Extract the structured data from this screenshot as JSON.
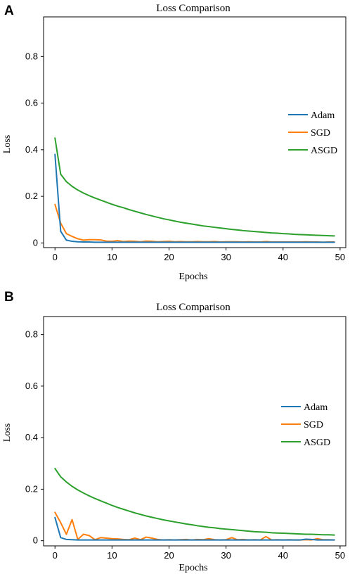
{
  "chart_data": [
    {
      "panel_label": "A",
      "type": "line",
      "title": "Loss Comparison",
      "xlabel": "Epochs",
      "ylabel": "Loss",
      "xlim": [
        -2,
        51
      ],
      "ylim": [
        -0.02,
        0.97
      ],
      "xticks": [
        0,
        10,
        20,
        30,
        40,
        50
      ],
      "yticks": [
        0,
        0.2,
        0.4,
        0.6,
        0.8
      ],
      "legend_position": "right",
      "x": [
        0,
        1,
        2,
        3,
        4,
        5,
        6,
        7,
        8,
        9,
        10,
        11,
        12,
        13,
        14,
        15,
        16,
        17,
        18,
        19,
        20,
        21,
        22,
        23,
        24,
        25,
        26,
        27,
        28,
        29,
        30,
        31,
        32,
        33,
        34,
        35,
        36,
        37,
        38,
        39,
        40,
        41,
        42,
        43,
        44,
        45,
        46,
        47,
        48,
        49
      ],
      "series": [
        {
          "name": "Adam",
          "color": "#1f77b4",
          "values": [
            0.38,
            0.05,
            0.012,
            0.007,
            0.005,
            0.004,
            0.004,
            0.003,
            0.003,
            0.003,
            0.003,
            0.003,
            0.003,
            0.003,
            0.003,
            0.003,
            0.003,
            0.003,
            0.003,
            0.003,
            0.003,
            0.003,
            0.003,
            0.003,
            0.003,
            0.003,
            0.003,
            0.003,
            0.003,
            0.003,
            0.003,
            0.003,
            0.003,
            0.003,
            0.003,
            0.003,
            0.003,
            0.003,
            0.003,
            0.003,
            0.003,
            0.003,
            0.003,
            0.003,
            0.003,
            0.003,
            0.003,
            0.003,
            0.003,
            0.003
          ]
        },
        {
          "name": "SGD",
          "color": "#ff7f0e",
          "values": [
            0.165,
            0.085,
            0.04,
            0.028,
            0.018,
            0.012,
            0.014,
            0.014,
            0.013,
            0.008,
            0.007,
            0.01,
            0.006,
            0.008,
            0.007,
            0.005,
            0.008,
            0.007,
            0.005,
            0.006,
            0.007,
            0.005,
            0.006,
            0.005,
            0.005,
            0.006,
            0.005,
            0.005,
            0.006,
            0.004,
            0.005,
            0.005,
            0.005,
            0.004,
            0.005,
            0.004,
            0.004,
            0.006,
            0.004,
            0.004,
            0.004,
            0.004,
            0.004,
            0.004,
            0.005,
            0.004,
            0.004,
            0.003,
            0.004,
            0.004
          ]
        },
        {
          "name": "ASGD",
          "color": "#2ca02c",
          "values": [
            0.45,
            0.295,
            0.263,
            0.243,
            0.227,
            0.214,
            0.203,
            0.193,
            0.184,
            0.175,
            0.166,
            0.158,
            0.151,
            0.143,
            0.136,
            0.129,
            0.122,
            0.116,
            0.11,
            0.104,
            0.099,
            0.094,
            0.089,
            0.085,
            0.081,
            0.077,
            0.073,
            0.07,
            0.067,
            0.064,
            0.061,
            0.058,
            0.056,
            0.053,
            0.051,
            0.049,
            0.047,
            0.045,
            0.043,
            0.042,
            0.04,
            0.039,
            0.037,
            0.036,
            0.035,
            0.034,
            0.033,
            0.032,
            0.031,
            0.03
          ]
        }
      ]
    },
    {
      "panel_label": "B",
      "type": "line",
      "title": "Loss Comparison",
      "xlabel": "Epochs",
      "ylabel": "Loss",
      "xlim": [
        -2,
        51
      ],
      "ylim": [
        -0.02,
        0.87
      ],
      "xticks": [
        0,
        10,
        20,
        30,
        40,
        50
      ],
      "yticks": [
        0,
        0.2,
        0.4,
        0.6,
        0.8
      ],
      "legend_position": "right",
      "x": [
        0,
        1,
        2,
        3,
        4,
        5,
        6,
        7,
        8,
        9,
        10,
        11,
        12,
        13,
        14,
        15,
        16,
        17,
        18,
        19,
        20,
        21,
        22,
        23,
        24,
        25,
        26,
        27,
        28,
        29,
        30,
        31,
        32,
        33,
        34,
        35,
        36,
        37,
        38,
        39,
        40,
        41,
        42,
        43,
        44,
        45,
        46,
        47,
        48,
        49
      ],
      "series": [
        {
          "name": "Adam",
          "color": "#1f77b4",
          "values": [
            0.09,
            0.012,
            0.005,
            0.004,
            0.003,
            0.003,
            0.003,
            0.003,
            0.003,
            0.003,
            0.003,
            0.003,
            0.003,
            0.003,
            0.003,
            0.003,
            0.003,
            0.003,
            0.003,
            0.003,
            0.003,
            0.003,
            0.003,
            0.003,
            0.003,
            0.003,
            0.003,
            0.003,
            0.003,
            0.003,
            0.003,
            0.003,
            0.003,
            0.003,
            0.003,
            0.003,
            0.003,
            0.003,
            0.003,
            0.003,
            0.003,
            0.003,
            0.003,
            0.003,
            0.006,
            0.005,
            0.003,
            0.003,
            0.003,
            0.003
          ]
        },
        {
          "name": "SGD",
          "color": "#ff7f0e",
          "values": [
            0.11,
            0.07,
            0.025,
            0.082,
            0.005,
            0.025,
            0.02,
            0.004,
            0.012,
            0.01,
            0.008,
            0.007,
            0.005,
            0.004,
            0.01,
            0.004,
            0.014,
            0.01,
            0.005,
            0.003,
            0.004,
            0.003,
            0.004,
            0.005,
            0.003,
            0.005,
            0.004,
            0.008,
            0.004,
            0.003,
            0.004,
            0.012,
            0.004,
            0.005,
            0.003,
            0.004,
            0.003,
            0.016,
            0.003,
            0.004,
            0.003,
            0.004,
            0.003,
            0.003,
            0.004,
            0.003,
            0.008,
            0.004,
            0.004,
            0.003
          ]
        },
        {
          "name": "ASGD",
          "color": "#2ca02c",
          "values": [
            0.28,
            0.248,
            0.228,
            0.211,
            0.197,
            0.185,
            0.174,
            0.164,
            0.155,
            0.146,
            0.137,
            0.129,
            0.122,
            0.115,
            0.108,
            0.102,
            0.096,
            0.091,
            0.086,
            0.081,
            0.077,
            0.073,
            0.069,
            0.065,
            0.062,
            0.058,
            0.055,
            0.052,
            0.05,
            0.047,
            0.045,
            0.043,
            0.041,
            0.039,
            0.037,
            0.035,
            0.034,
            0.033,
            0.031,
            0.03,
            0.029,
            0.028,
            0.027,
            0.026,
            0.025,
            0.025,
            0.024,
            0.023,
            0.023,
            0.022
          ]
        }
      ]
    }
  ]
}
